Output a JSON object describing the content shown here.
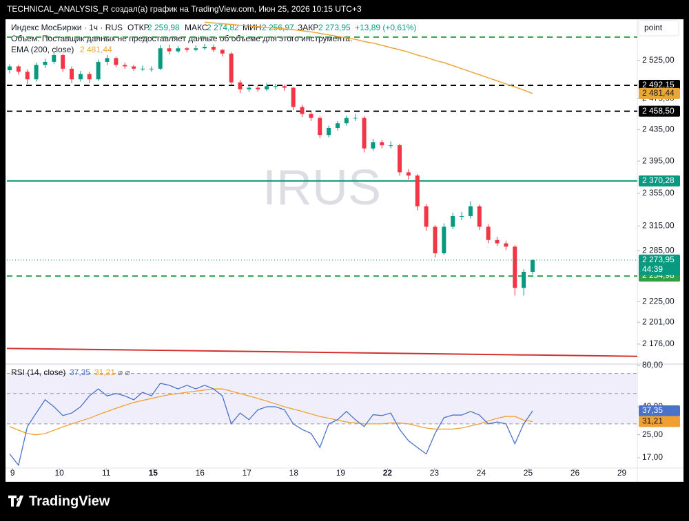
{
  "header": {
    "caption": "TECHNICAL_ANALYSIS_R создал(а) график на TradingView.com, Июн 25, 2026 10:15 UTC+3",
    "scale_tab": "point",
    "footer_logo": "TradingView"
  },
  "chart_data": {
    "type": "candlestick",
    "watermark": "IRUS",
    "log_scale": true,
    "legend": {
      "symbol": "Индекс МосБиржи · 1ч · RUS",
      "open_label": "ОТКР",
      "open": "2 259,98",
      "high_label": "МАКС",
      "high": "2 274,82",
      "low_label": "МИН",
      "low": "2 256,97",
      "close_label": "ЗАКР",
      "close": "2 273,95",
      "change": "+13,89 (+0,61%)",
      "volume_note": "Объем: Поставщик данных не предоставляет данные об объеме для этого инструмента.",
      "ema_name": "EMA (200, close)",
      "ema_value": "2 481,44"
    },
    "up_color": "#089981",
    "down_color": "#f23645",
    "ylim": [
      2154,
      2580
    ],
    "yticks": [
      {
        "value": 2525,
        "label": "2 525,00"
      },
      {
        "value": 2475,
        "label": "2 475,00"
      },
      {
        "value": 2435,
        "label": "2 435,00"
      },
      {
        "value": 2395,
        "label": "2 395,00"
      },
      {
        "value": 2355,
        "label": "2 355,00"
      },
      {
        "value": 2315,
        "label": "2 315,00"
      },
      {
        "value": 2285,
        "label": "2 285,00"
      },
      {
        "value": 2225,
        "label": "2 225,00"
      },
      {
        "value": 2201,
        "label": "2 201,00"
      },
      {
        "value": 2176,
        "label": "2 176,00"
      }
    ],
    "xlim": [
      -0.12,
      13.33
    ],
    "xticks": [
      {
        "value": 0,
        "label": "9"
      },
      {
        "value": 1,
        "label": "10"
      },
      {
        "value": 2,
        "label": "11"
      },
      {
        "value": 3,
        "label": "15"
      },
      {
        "value": 4,
        "label": "16"
      },
      {
        "value": 5,
        "label": "17"
      },
      {
        "value": 6,
        "label": "18"
      },
      {
        "value": 7,
        "label": "19"
      },
      {
        "value": 8,
        "label": "22"
      },
      {
        "value": 9,
        "label": "23"
      },
      {
        "value": 10,
        "label": "24"
      },
      {
        "value": 11,
        "label": "25"
      },
      {
        "value": 12,
        "label": "26"
      },
      {
        "value": 13,
        "label": "29"
      }
    ],
    "bold_xticks": [
      "15",
      "22"
    ],
    "candles": [
      [
        2512,
        2520,
        2508,
        2517
      ],
      [
        2517,
        2519,
        2506,
        2510
      ],
      [
        2510,
        2513,
        2494,
        2500
      ],
      [
        2500,
        2522,
        2497,
        2519
      ],
      [
        2519,
        2527,
        2515,
        2523
      ],
      [
        2523,
        2536,
        2520,
        2532
      ],
      [
        2532,
        2534,
        2510,
        2514
      ],
      [
        2514,
        2517,
        2495,
        2500
      ],
      [
        2500,
        2511,
        2497,
        2507
      ],
      [
        2507,
        2510,
        2495,
        2500
      ],
      [
        2500,
        2526,
        2498,
        2523
      ],
      [
        2523,
        2532,
        2519,
        2528
      ],
      [
        2528,
        2530,
        2516,
        2519
      ],
      [
        2519,
        2522,
        2514,
        2517
      ],
      [
        2517,
        2519,
        2511,
        2514
      ],
      [
        2514,
        2518,
        2511,
        2514
      ],
      [
        2514,
        2517,
        2510,
        2514
      ],
      [
        2514,
        2545,
        2512,
        2541
      ],
      [
        2541,
        2546,
        2533,
        2537
      ],
      [
        2537,
        2544,
        2535,
        2541
      ],
      [
        2541,
        2543,
        2536,
        2539
      ],
      [
        2539,
        2545,
        2537,
        2541
      ],
      [
        2541,
        2547,
        2539,
        2543
      ],
      [
        2543,
        2546,
        2536,
        2539
      ],
      [
        2539,
        2540,
        2530,
        2534
      ],
      [
        2534,
        2536,
        2492,
        2496
      ],
      [
        2496,
        2499,
        2482,
        2487
      ],
      [
        2487,
        2493,
        2484,
        2489
      ],
      [
        2489,
        2492,
        2484,
        2487
      ],
      [
        2487,
        2495,
        2485,
        2491
      ],
      [
        2491,
        2494,
        2487,
        2491
      ],
      [
        2491,
        2493,
        2485,
        2489
      ],
      [
        2489,
        2490,
        2460,
        2464
      ],
      [
        2464,
        2467,
        2451,
        2455
      ],
      [
        2455,
        2458,
        2446,
        2450
      ],
      [
        2450,
        2452,
        2424,
        2428
      ],
      [
        2428,
        2440,
        2425,
        2437
      ],
      [
        2437,
        2446,
        2434,
        2443
      ],
      [
        2443,
        2453,
        2440,
        2450
      ],
      [
        2450,
        2455,
        2446,
        2450
      ],
      [
        2450,
        2452,
        2406,
        2411
      ],
      [
        2411,
        2423,
        2408,
        2419
      ],
      [
        2419,
        2422,
        2411,
        2415
      ],
      [
        2415,
        2420,
        2411,
        2415
      ],
      [
        2415,
        2417,
        2377,
        2381
      ],
      [
        2381,
        2385,
        2372,
        2377
      ],
      [
        2377,
        2379,
        2334,
        2339
      ],
      [
        2339,
        2342,
        2309,
        2314
      ],
      [
        2314,
        2316,
        2277,
        2282
      ],
      [
        2282,
        2318,
        2280,
        2314
      ],
      [
        2314,
        2331,
        2311,
        2327
      ],
      [
        2327,
        2332,
        2322,
        2327
      ],
      [
        2327,
        2345,
        2324,
        2339
      ],
      [
        2339,
        2341,
        2310,
        2314
      ],
      [
        2314,
        2317,
        2294,
        2298
      ],
      [
        2298,
        2302,
        2291,
        2294
      ],
      [
        2294,
        2297,
        2286,
        2290
      ],
      [
        2290,
        2292,
        2232,
        2241
      ],
      [
        2241,
        2263,
        2232,
        2260
      ],
      [
        2259.98,
        2274.82,
        2256.97,
        2273.95
      ]
    ],
    "ema": {
      "color": "#e8a838",
      "values": [
        null,
        null,
        null,
        null,
        null,
        null,
        null,
        null,
        null,
        null,
        null,
        null,
        null,
        null,
        null,
        null,
        null,
        null,
        null,
        null,
        null,
        null,
        2576,
        2575,
        2574,
        2573,
        2572,
        2571,
        2570,
        2569,
        2568,
        2567,
        2566,
        2564.5,
        2563,
        2561,
        2559,
        2557,
        2555,
        2553,
        2550,
        2548,
        2545,
        2542,
        2539,
        2536,
        2532,
        2529,
        2525,
        2522,
        2518,
        2514,
        2510,
        2506,
        2502,
        2498,
        2494,
        2490,
        2486,
        2481.44
      ]
    },
    "last_price": {
      "label": "2 273,95",
      "countdown": "44:39",
      "color": "#089981"
    },
    "ema_axis_label": {
      "value": 2481.44,
      "label": "2 481,44"
    },
    "levels": [
      {
        "value": 2556,
        "color": "#2ea043",
        "style": "dashed"
      },
      {
        "value": 2492.15,
        "label": "2 492,15",
        "color": "#000000",
        "style": "dashed"
      },
      {
        "value": 2458.5,
        "label": "2 458,50",
        "color": "#000000",
        "style": "dashed"
      },
      {
        "value": 2370.28,
        "label": "2 370,28",
        "color": "#089981",
        "style": "solid"
      },
      {
        "value": 2254.98,
        "label": "2 254,98",
        "color": "#2ea043",
        "style": "dashed"
      }
    ],
    "trend_line": {
      "values": [
        2171,
        2162
      ],
      "color": "#d32f2f"
    },
    "rsi": {
      "name": "RSI (14, close)",
      "value_label": "37,35",
      "ma_label": "31,21",
      "extra": "⌀ ⌀",
      "ylim": [
        14.3,
        81
      ],
      "yticks": [
        {
          "value": 80,
          "label": "80,00"
        },
        {
          "value": 40,
          "label": "40,00"
        },
        {
          "value": 25,
          "label": "25,00"
        },
        {
          "value": 17,
          "label": "17,00"
        }
      ],
      "levels": [
        70,
        50,
        30
      ],
      "line": {
        "color": "#4a72c9",
        "values": [
          18.1,
          15,
          28.7,
          36,
          45,
          40,
          34.5,
          36,
          40,
          48,
          54,
          48,
          50,
          48,
          45,
          51,
          48,
          59.3,
          57.4,
          54,
          57.4,
          54,
          57.4,
          54,
          48,
          30.1,
          36,
          32.2,
          38,
          40,
          40,
          38,
          30,
          27.3,
          25.6,
          20.2,
          30,
          32.2,
          37,
          32.2,
          28.7,
          35,
          34.5,
          36,
          27.3,
          22.6,
          20.2,
          18.1,
          25.6,
          33.3,
          34.8,
          34.8,
          37,
          34.8,
          30,
          31,
          30,
          21.5,
          30,
          37.35
        ]
      },
      "ma": {
        "color": "#f0a030",
        "values": [
          28.7,
          27,
          25.5,
          25,
          25.5,
          27,
          28.5,
          30,
          31.5,
          33,
          35,
          37,
          39,
          41,
          43,
          44.5,
          46,
          47.5,
          49,
          50,
          51,
          52,
          53,
          54,
          54,
          52,
          50,
          48,
          46,
          44,
          42,
          40,
          38.5,
          37,
          35.5,
          34,
          33,
          32,
          31,
          30.5,
          30,
          30,
          30,
          30.5,
          30.5,
          30,
          29,
          28,
          27.5,
          27.5,
          27.5,
          28,
          29,
          30,
          31.5,
          33,
          34,
          34,
          32,
          31.21
        ]
      }
    }
  }
}
